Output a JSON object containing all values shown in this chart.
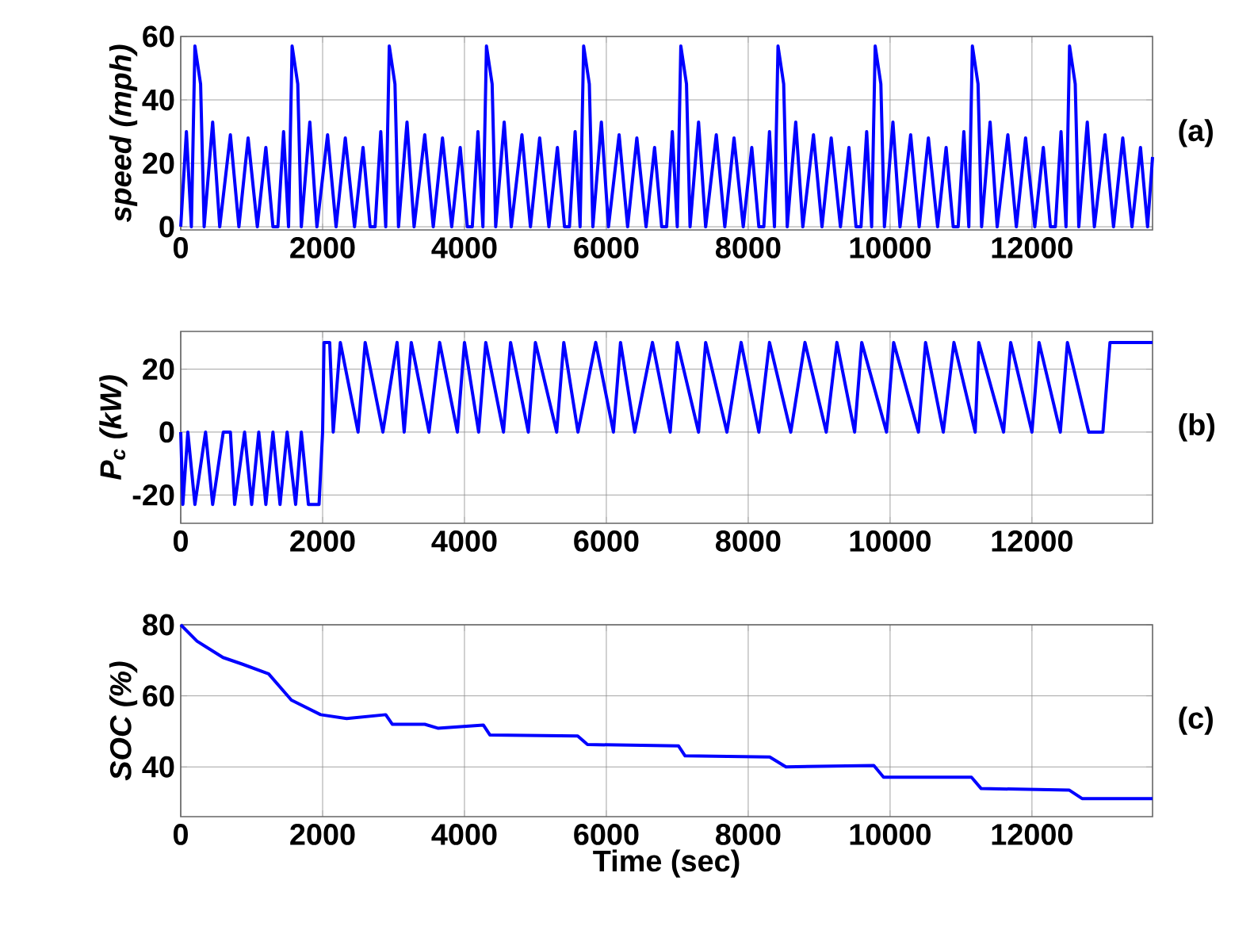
{
  "chart_data": [
    {
      "type": "line",
      "ylabel": "speed (mph)",
      "annotations": [
        "(a)"
      ],
      "color": "#0000ff",
      "grid": true,
      "xlim": [
        0,
        13700
      ],
      "ylim": [
        -1,
        60
      ],
      "xticks": [
        0,
        2000,
        4000,
        6000,
        8000,
        10000,
        12000
      ],
      "yticks": [
        0,
        20,
        40,
        60
      ],
      "x": [
        0,
        80,
        150,
        200,
        280,
        330,
        450,
        550,
        700,
        820,
        950,
        1080,
        1200,
        1300,
        1370,
        1450,
        1520,
        1570,
        1650,
        1700,
        1820,
        1920,
        2070,
        2190,
        2320,
        2450,
        2570,
        2670,
        2740,
        2820,
        2890,
        2940,
        3020,
        3070,
        3190,
        3290,
        3440,
        3560,
        3690,
        3820,
        3940,
        4040,
        4110,
        4190,
        4260,
        4310,
        4390,
        4440,
        4560,
        4660,
        4810,
        4930,
        5060,
        5190,
        5310,
        5410,
        5480,
        5560,
        5630,
        5680,
        5760,
        5810,
        5930,
        6030,
        6180,
        6300,
        6430,
        6560,
        6680,
        6780,
        6850,
        6930,
        7000,
        7050,
        7130,
        7180,
        7300,
        7400,
        7550,
        7670,
        7800,
        7930,
        8050,
        8150,
        8220,
        8300,
        8370,
        8420,
        8500,
        8550,
        8670,
        8770,
        8920,
        9040,
        9170,
        9300,
        9420,
        9520,
        9590,
        9670,
        9740,
        9790,
        9870,
        9920,
        10040,
        10140,
        10290,
        10410,
        10540,
        10670,
        10790,
        10890,
        10960,
        11040,
        11110,
        11160,
        11240,
        11290,
        11410,
        11510,
        11660,
        11780,
        11910,
        12040,
        12160,
        12260,
        12330,
        12410,
        12480,
        12530,
        12610,
        12660,
        12780,
        12880,
        13030,
        13150,
        13280,
        13410,
        13530,
        13630,
        13700
      ],
      "values": [
        0,
        30,
        0,
        57,
        45,
        0,
        33,
        0,
        29,
        0,
        28,
        0,
        25,
        0,
        0,
        30,
        0,
        57,
        45,
        0,
        33,
        0,
        29,
        0,
        28,
        0,
        25,
        0,
        0,
        30,
        0,
        57,
        45,
        0,
        33,
        0,
        29,
        0,
        28,
        0,
        25,
        0,
        0,
        30,
        0,
        57,
        45,
        0,
        33,
        0,
        29,
        0,
        28,
        0,
        25,
        0,
        0,
        30,
        0,
        57,
        45,
        0,
        33,
        0,
        29,
        0,
        28,
        0,
        25,
        0,
        0,
        30,
        0,
        57,
        45,
        0,
        33,
        0,
        29,
        0,
        28,
        0,
        25,
        0,
        0,
        30,
        0,
        57,
        45,
        0,
        33,
        0,
        29,
        0,
        28,
        0,
        25,
        0,
        0,
        30,
        0,
        57,
        45,
        0,
        33,
        0,
        29,
        0,
        28,
        0,
        25,
        0,
        0,
        30,
        0,
        57,
        45,
        0,
        33,
        0,
        29,
        0,
        28,
        0,
        25,
        0,
        0,
        30,
        0,
        57,
        45,
        0,
        33,
        0,
        29,
        0,
        28,
        0,
        25,
        0,
        22
      ]
    },
    {
      "type": "line",
      "ylabel": "P$_{c}$ (kW)",
      "annotations": [
        "(b)"
      ],
      "color": "#0000ff",
      "grid": true,
      "xlim": [
        0,
        13700
      ],
      "ylim": [
        -29,
        32
      ],
      "xticks": [
        0,
        2000,
        4000,
        6000,
        8000,
        10000,
        12000
      ],
      "yticks": [
        -20,
        0,
        20
      ],
      "x": [
        0,
        30,
        100,
        200,
        350,
        450,
        600,
        700,
        760,
        900,
        1000,
        1100,
        1200,
        1300,
        1400,
        1500,
        1620,
        1700,
        1800,
        1950,
        2000,
        2020,
        2100,
        2150,
        2250,
        2500,
        2600,
        2850,
        3050,
        3150,
        3250,
        3500,
        3650,
        3900,
        4000,
        4200,
        4300,
        4550,
        4650,
        4900,
        5000,
        5300,
        5400,
        5600,
        5850,
        6100,
        6200,
        6400,
        6650,
        6900,
        7000,
        7300,
        7400,
        7700,
        7900,
        8150,
        8300,
        8600,
        8800,
        9100,
        9250,
        9500,
        9600,
        9950,
        10050,
        10400,
        10500,
        10750,
        10900,
        11200,
        11250,
        11600,
        11700,
        12000,
        12100,
        12400,
        12500,
        12800,
        13000,
        13100,
        13700
      ],
      "values": [
        0,
        -23,
        0,
        -23,
        0,
        -23,
        0,
        0,
        -23,
        0,
        -23,
        0,
        -23,
        0,
        -23,
        0,
        -23,
        0,
        -23,
        -23,
        0,
        28.5,
        28.5,
        0,
        28.5,
        0,
        28.5,
        0,
        28.5,
        0,
        28.5,
        0,
        28.5,
        0,
        28.5,
        0,
        28.5,
        0,
        28.5,
        0,
        28.5,
        0,
        28.5,
        0,
        28.5,
        0,
        28.5,
        0,
        28.5,
        0,
        28.5,
        0,
        28.5,
        0,
        28.5,
        0,
        28.5,
        0,
        28.5,
        0,
        28.5,
        0,
        28.5,
        0,
        28.5,
        0,
        28.5,
        0,
        28.5,
        0,
        28.5,
        0,
        28.5,
        0,
        28.5,
        0,
        28.5,
        0,
        0,
        28.5,
        28.5
      ]
    },
    {
      "type": "line",
      "ylabel": "SOC (%)",
      "xlabel": "Time (sec)",
      "annotations": [
        "(c)"
      ],
      "color": "#0000ff",
      "grid": true,
      "xlim": [
        0,
        13700
      ],
      "ylim": [
        26,
        80
      ],
      "xticks": [
        0,
        2000,
        4000,
        6000,
        8000,
        10000,
        12000
      ],
      "yticks": [
        40,
        60,
        80
      ],
      "x": [
        0,
        229,
        596,
        872,
        1239,
        1560,
        1972,
        2339,
        2890,
        2982,
        3440,
        3624,
        4266,
        4358,
        5596,
        5734,
        7018,
        7110,
        8303,
        8532,
        9771,
        9908,
        11147,
        11284,
        12523,
        12706,
        13700
      ],
      "values": [
        80,
        75.4,
        70.8,
        68.9,
        66.2,
        58.8,
        54.7,
        53.6,
        54.7,
        52.0,
        52.0,
        50.9,
        51.8,
        49.0,
        48.7,
        46.3,
        45.9,
        43.1,
        42.8,
        40.0,
        40.4,
        37.1,
        37.1,
        33.9,
        33.5,
        31.1,
        31.1
      ]
    }
  ]
}
